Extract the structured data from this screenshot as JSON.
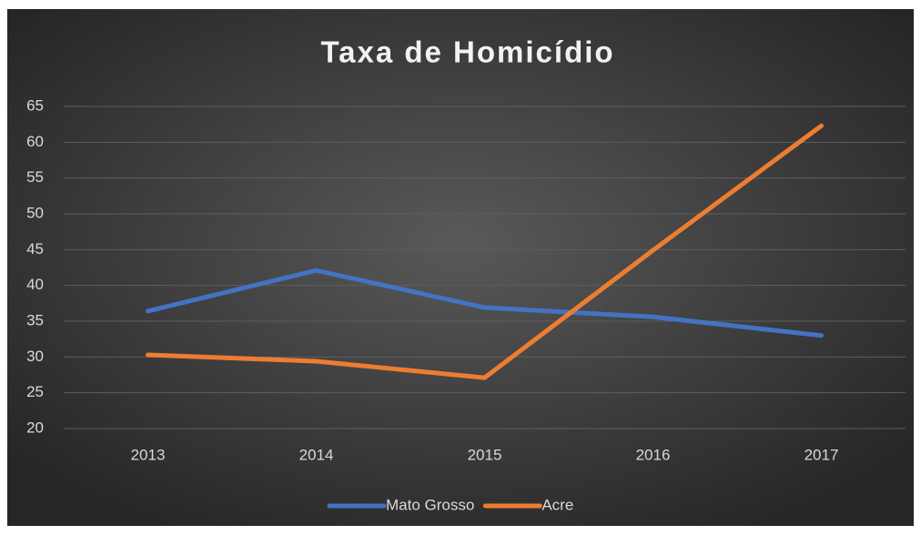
{
  "chart_data": {
    "type": "line",
    "title": "Taxa de Homicídio",
    "categories": [
      "2013",
      "2014",
      "2015",
      "2016",
      "2017"
    ],
    "series": [
      {
        "name": "Mato Grosso",
        "color": "#4472c4",
        "values": [
          36.4,
          42.1,
          36.9,
          35.6,
          33.0
        ]
      },
      {
        "name": "Acre",
        "color": "#ed7d31",
        "values": [
          30.3,
          29.4,
          27.1,
          44.9,
          62.3
        ]
      }
    ],
    "ylim": [
      20,
      65
    ],
    "yticks": [
      20,
      25,
      30,
      35,
      40,
      45,
      50,
      55,
      60,
      65
    ],
    "grid": true,
    "legend": "bottom"
  }
}
